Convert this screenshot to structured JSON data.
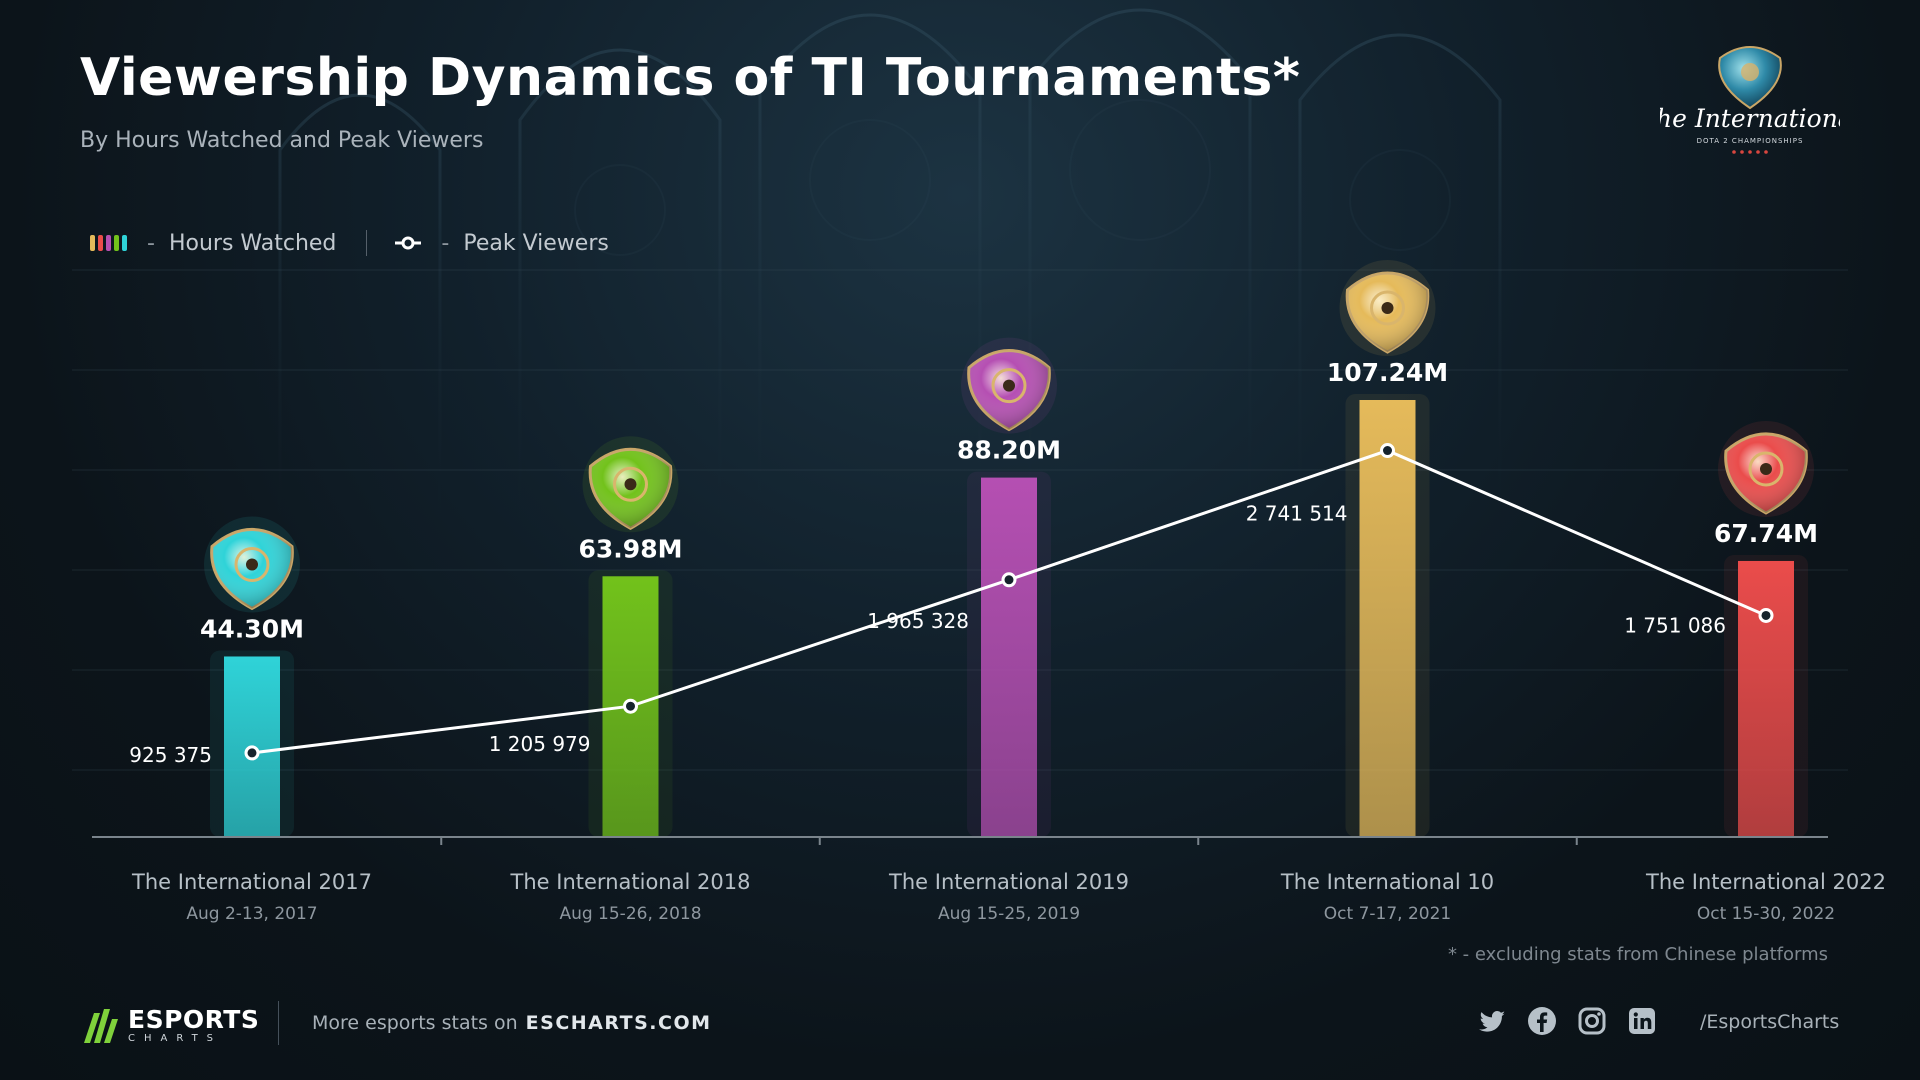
{
  "header": {
    "title": "Viewership Dynamics of TI Tournaments*",
    "subtitle": "By Hours Watched and Peak Viewers"
  },
  "legend": {
    "hours_label": "Hours Watched",
    "peak_label": "Peak Viewers",
    "dash": "-"
  },
  "logo": {
    "icon": "the-international-aegis-logo",
    "text": "The International",
    "subtext": "DOTA 2 CHAMPIONSHIPS"
  },
  "chart_data": {
    "type": "bar",
    "title": "Viewership Dynamics of TI Tournaments*",
    "subtitle": "By Hours Watched and Peak Viewers",
    "categories": [
      "The International 2017",
      "The International 2018",
      "The International 2019",
      "The International 10",
      "The International 2022"
    ],
    "dates": [
      "Aug 2-13, 2017",
      "Aug 15-26, 2018",
      "Aug 15-25, 2019",
      "Oct 7-17, 2021",
      "Oct 15-30, 2022"
    ],
    "series": [
      {
        "name": "Hours Watched",
        "type": "bar",
        "values": [
          44.3,
          63.98,
          88.2,
          107.24,
          67.74
        ],
        "labels": [
          "44.30M",
          "63.98M",
          "88.20M",
          "107.24M",
          "67.74M"
        ],
        "colors": [
          "#2fd3d8",
          "#72c21b",
          "#b54fb2",
          "#e5ba5a",
          "#ea4c4b"
        ]
      },
      {
        "name": "Peak Viewers",
        "type": "line",
        "values": [
          925375,
          1205979,
          1965328,
          2741514,
          1751086
        ],
        "labels": [
          "925 375",
          "1 205 979",
          "1 965 328",
          "2 741 514",
          "1 751 086"
        ]
      }
    ],
    "grid": true,
    "legend_position": "top-left"
  },
  "footnote": "* - excluding stats from Chinese platforms",
  "footer": {
    "brand_main": "ESPORTS",
    "brand_sub": "CHARTS",
    "more_text": "More esports stats on",
    "site": "ESCHARTS.COM",
    "handle": "/EsportsCharts",
    "icons": [
      "twitter-icon",
      "facebook-icon",
      "instagram-icon",
      "linkedin-icon"
    ]
  }
}
